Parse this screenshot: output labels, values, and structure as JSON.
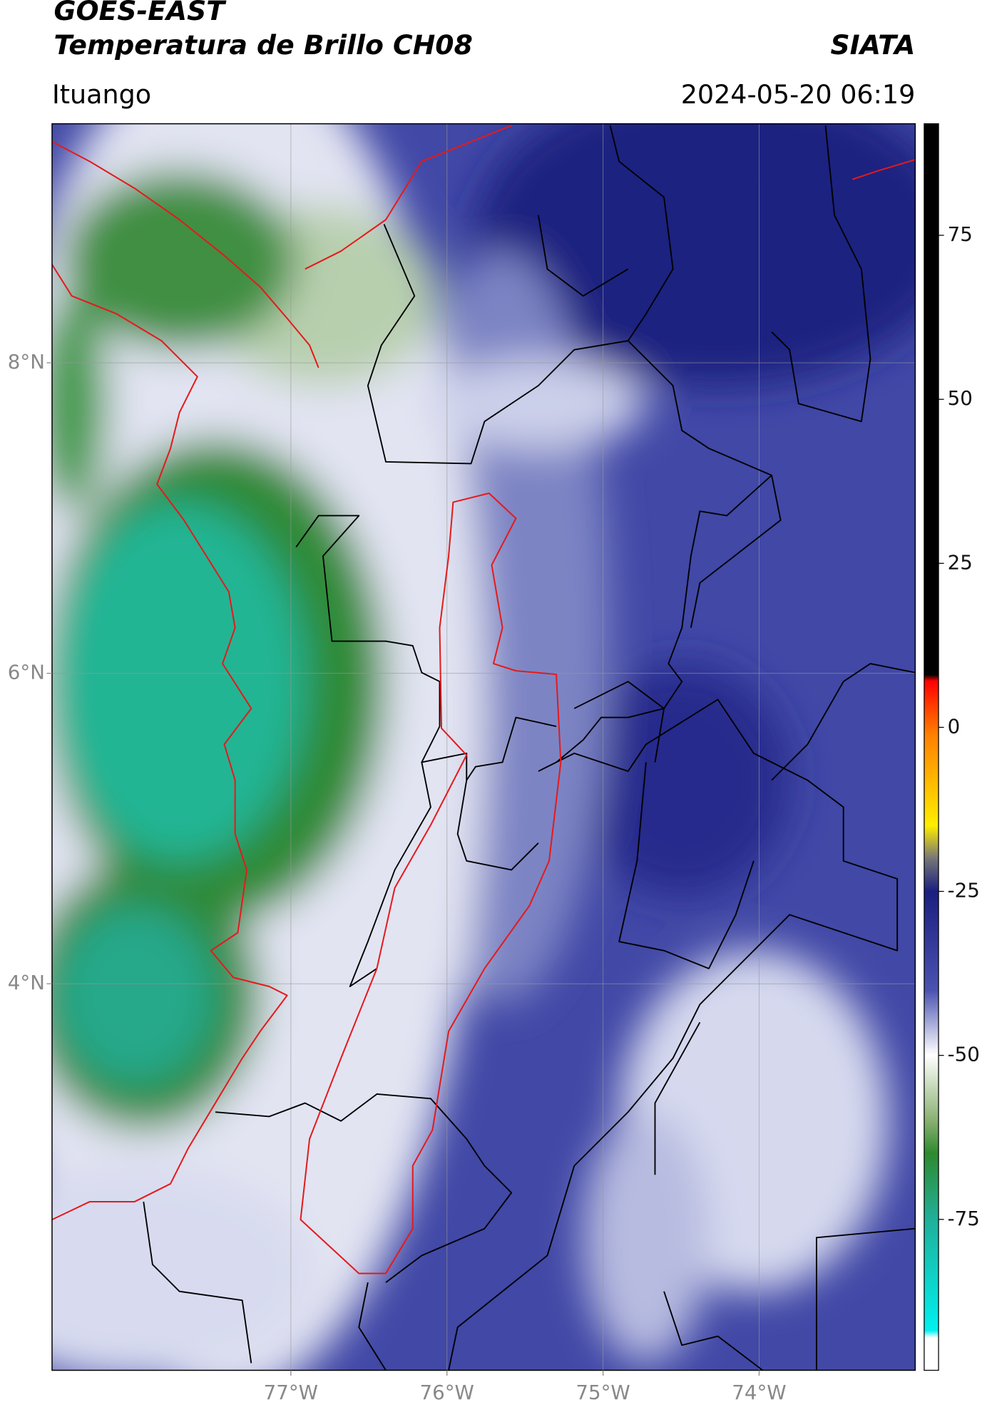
{
  "header": {
    "title": "GOES-EAST",
    "subtitle": "Temperatura de Brillo CH08",
    "brand": "SIATA",
    "location": "Ituango",
    "datetime": "2024-05-20 06:19"
  },
  "map": {
    "xlim": [
      -78.53,
      -73.0
    ],
    "ylim": [
      1.51,
      9.54
    ],
    "xticks": [
      {
        "value": -77,
        "label": "77°W"
      },
      {
        "value": -76,
        "label": "76°W"
      },
      {
        "value": -75,
        "label": "75°W"
      },
      {
        "value": -74,
        "label": "74°W"
      }
    ],
    "yticks": [
      {
        "value": 8,
        "label": "8°N"
      },
      {
        "value": 6,
        "label": "6°N"
      },
      {
        "value": 4,
        "label": "4°N"
      }
    ],
    "grid": true
  },
  "colorbar": {
    "lim": [
      -98,
      92
    ],
    "ticks": [
      75,
      50,
      25,
      0,
      -25,
      -50,
      -75
    ]
  }
}
